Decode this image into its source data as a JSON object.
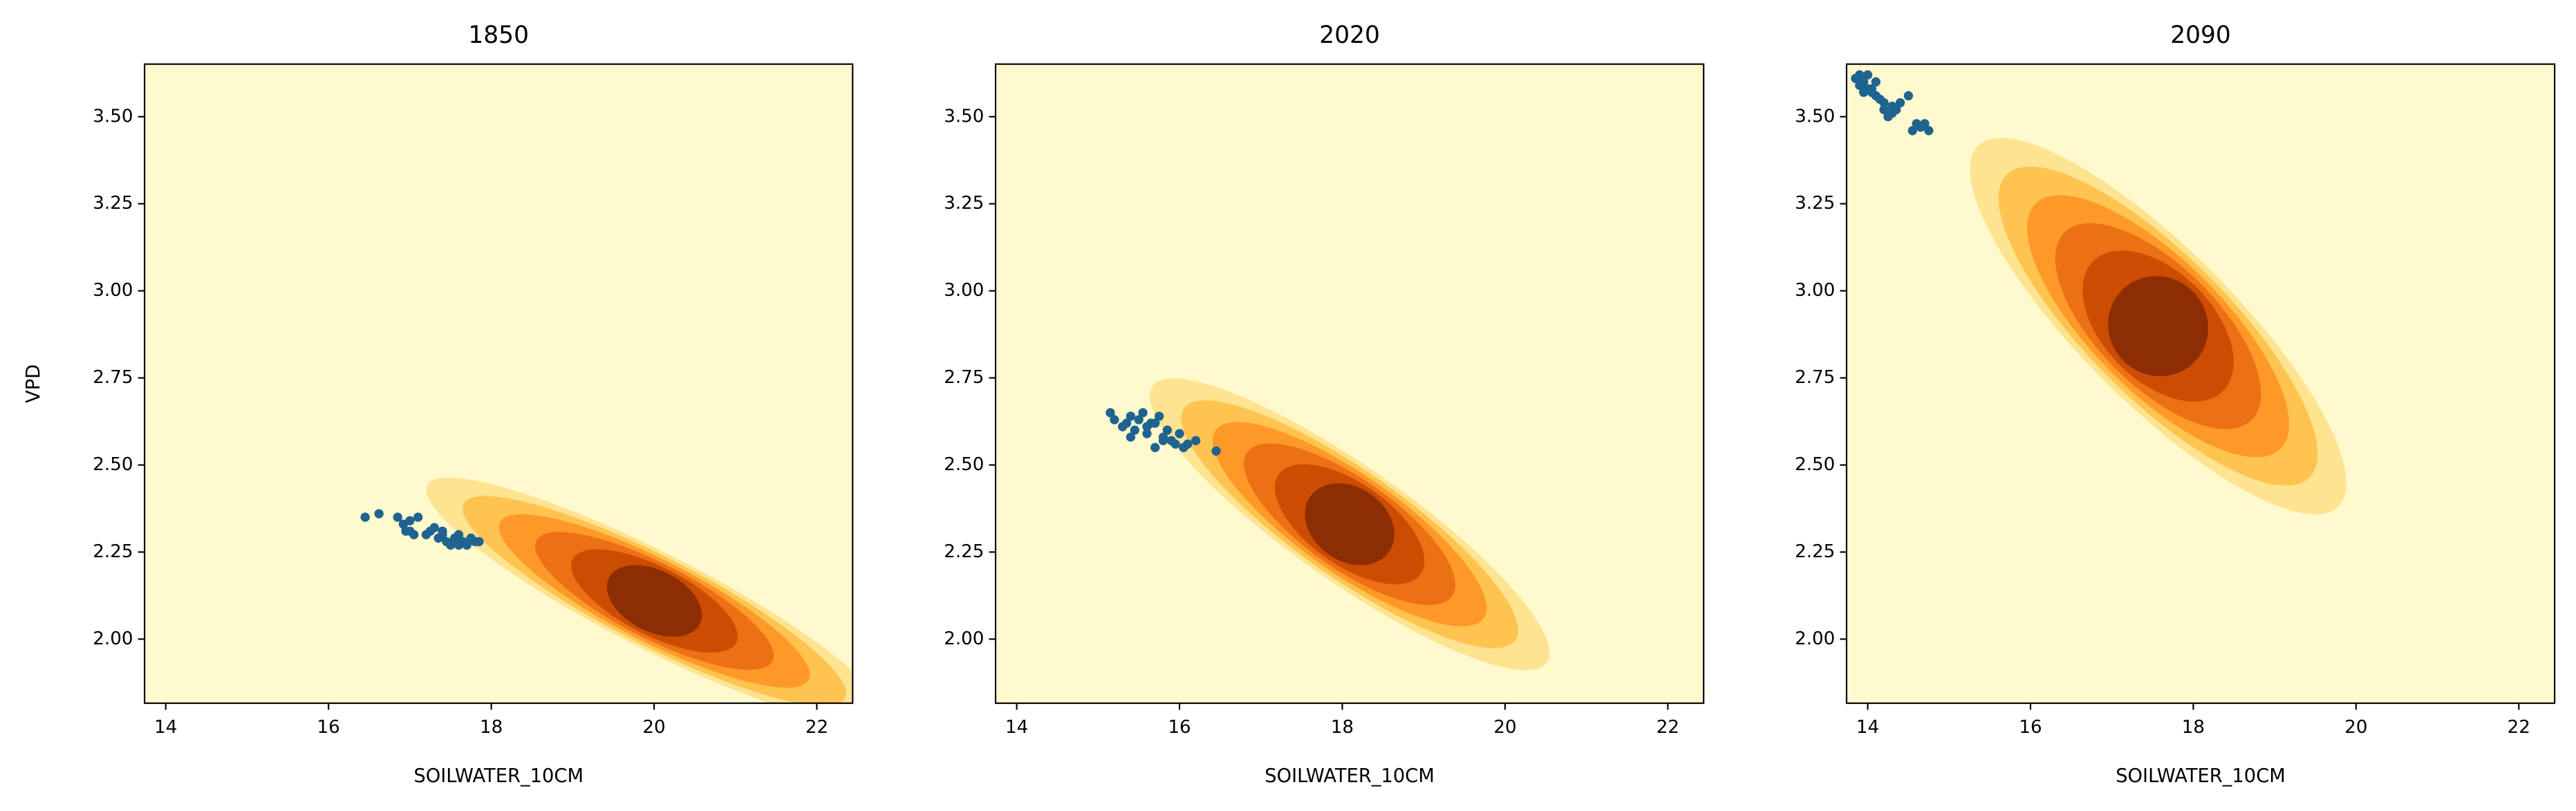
{
  "chart_data": [
    {
      "type": "scatter",
      "title": "1850",
      "x_label": "SOILWATER_10CM",
      "y_label": "VPD",
      "color": "#1f6391",
      "xlim": [
        13.74,
        22.44
      ],
      "ylim": [
        1.816,
        3.651
      ],
      "xticks": [
        14,
        16,
        18,
        20,
        22
      ],
      "yticks": [
        {
          "value": 2.0,
          "label": "2.00"
        },
        {
          "value": 2.25,
          "label": "2.25"
        },
        {
          "value": 2.5,
          "label": "2.50"
        },
        {
          "value": 2.75,
          "label": "2.75"
        },
        {
          "value": 3.0,
          "label": "3.00"
        },
        {
          "value": 3.25,
          "label": "3.25"
        },
        {
          "value": 3.5,
          "label": "3.50"
        }
      ],
      "x": [
        16.45,
        16.62,
        16.85,
        16.92,
        16.95,
        17.0,
        17.05,
        17.1,
        17.2,
        17.25,
        17.3,
        17.35,
        17.4,
        17.45,
        17.5,
        17.55,
        17.6,
        17.65,
        17.7,
        17.75,
        17.8,
        17.85,
        17.0,
        17.4,
        17.6
      ],
      "y": [
        2.35,
        2.36,
        2.35,
        2.33,
        2.31,
        2.31,
        2.3,
        2.35,
        2.3,
        2.31,
        2.32,
        2.29,
        2.3,
        2.28,
        2.27,
        2.29,
        2.3,
        2.28,
        2.27,
        2.29,
        2.28,
        2.28,
        2.34,
        2.31,
        2.27
      ]
    },
    {
      "type": "scatter",
      "title": "2020",
      "x_label": "SOILWATER_10CM",
      "color": "#1f6391",
      "xlim": [
        13.74,
        22.44
      ],
      "ylim": [
        1.816,
        3.651
      ],
      "xticks": [
        14,
        16,
        18,
        20,
        22
      ],
      "yticks": [
        {
          "value": 2.0,
          "label": "2.00"
        },
        {
          "value": 2.25,
          "label": "2.25"
        },
        {
          "value": 2.5,
          "label": "2.50"
        },
        {
          "value": 2.75,
          "label": "2.75"
        },
        {
          "value": 3.0,
          "label": "3.00"
        },
        {
          "value": 3.25,
          "label": "3.25"
        },
        {
          "value": 3.5,
          "label": "3.50"
        }
      ],
      "x": [
        15.15,
        15.2,
        15.3,
        15.35,
        15.4,
        15.45,
        15.5,
        15.55,
        15.6,
        15.65,
        15.7,
        15.75,
        15.8,
        15.85,
        15.9,
        15.95,
        16.0,
        16.05,
        16.1,
        16.2,
        16.45,
        15.6,
        15.8,
        15.4,
        15.7
      ],
      "y": [
        2.65,
        2.63,
        2.61,
        2.62,
        2.64,
        2.6,
        2.63,
        2.65,
        2.59,
        2.62,
        2.55,
        2.64,
        2.58,
        2.6,
        2.57,
        2.56,
        2.59,
        2.55,
        2.56,
        2.57,
        2.54,
        2.61,
        2.57,
        2.58,
        2.62
      ]
    },
    {
      "type": "scatter",
      "title": "2090",
      "x_label": "SOILWATER_10CM",
      "color": "#1f6391",
      "xlim": [
        13.74,
        22.44
      ],
      "ylim": [
        1.816,
        3.651
      ],
      "xticks": [
        14,
        16,
        18,
        20,
        22
      ],
      "yticks": [
        {
          "value": 2.0,
          "label": "2.00"
        },
        {
          "value": 2.25,
          "label": "2.25"
        },
        {
          "value": 2.5,
          "label": "2.50"
        },
        {
          "value": 2.75,
          "label": "2.75"
        },
        {
          "value": 3.0,
          "label": "3.00"
        },
        {
          "value": 3.25,
          "label": "3.25"
        },
        {
          "value": 3.5,
          "label": "3.50"
        }
      ],
      "x": [
        13.85,
        13.9,
        13.95,
        14.0,
        14.05,
        14.1,
        14.15,
        14.2,
        14.25,
        14.3,
        14.35,
        14.4,
        14.5,
        14.55,
        14.6,
        14.65,
        14.7,
        14.75,
        13.9,
        14.0,
        14.1,
        14.2,
        14.3,
        14.05,
        13.95
      ],
      "y": [
        3.61,
        3.59,
        3.57,
        3.62,
        3.58,
        3.6,
        3.55,
        3.52,
        3.5,
        3.53,
        3.52,
        3.54,
        3.56,
        3.46,
        3.48,
        3.47,
        3.48,
        3.46,
        3.62,
        3.58,
        3.56,
        3.54,
        3.51,
        3.57,
        3.6
      ]
    }
  ]
}
